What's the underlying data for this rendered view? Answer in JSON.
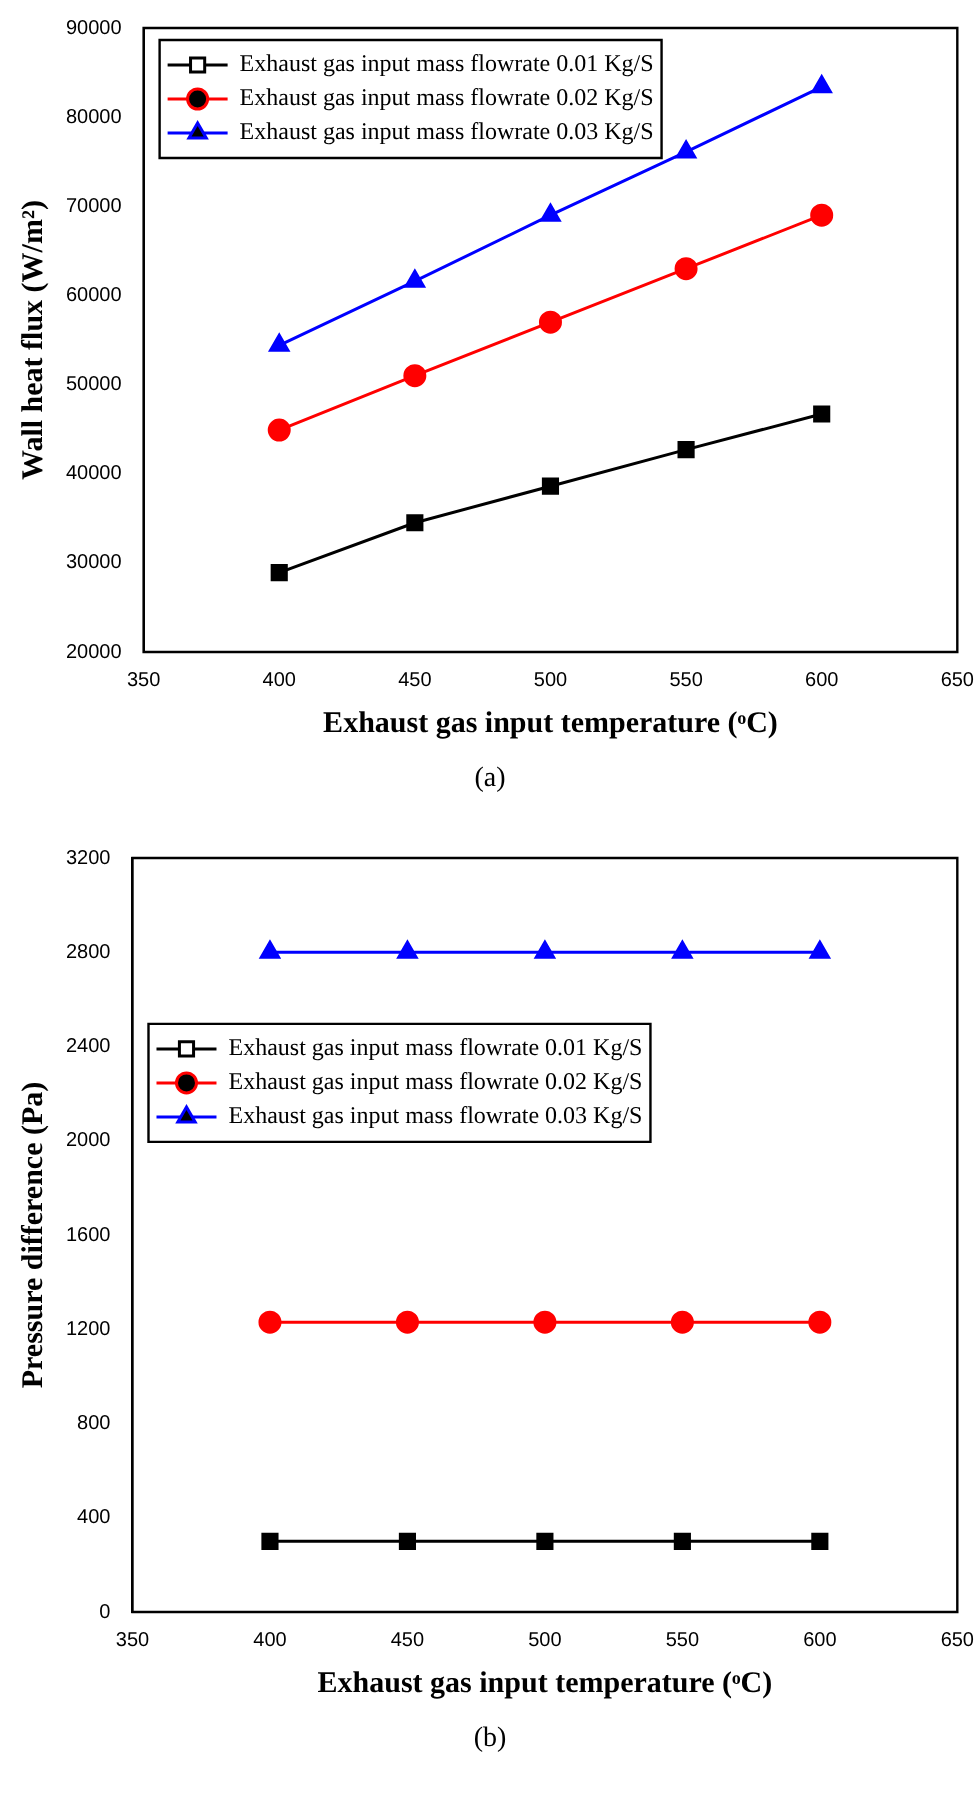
{
  "chart_data": [
    {
      "type": "line",
      "xlabel": "Exhaust gas input temperature (ᵒC)",
      "ylabel": "Wall heat flux (W/m²)",
      "annotations": [
        "(a)"
      ],
      "x": [
        400,
        450,
        500,
        550,
        600
      ],
      "xlim": [
        350,
        650
      ],
      "xticks": [
        350,
        400,
        450,
        500,
        550,
        600,
        650
      ],
      "ylim": [
        20000,
        90000
      ],
      "yticks": [
        20000,
        30000,
        40000,
        50000,
        60000,
        70000,
        80000,
        90000
      ],
      "legend": "top left",
      "grid": false,
      "series": [
        {
          "name": "Exhaust gas input mass flowrate 0.01 Kg/S",
          "color": "#000000",
          "marker": "square",
          "values": [
            28900,
            34500,
            38600,
            42700,
            46700
          ]
        },
        {
          "name": "Exhaust gas input mass flowrate 0.02 Kg/S",
          "color": "#ff0000",
          "marker": "circle",
          "values": [
            44900,
            51000,
            57000,
            63000,
            69000
          ]
        },
        {
          "name": "Exhaust gas input mass flowrate 0.03 Kg/S",
          "color": "#0000ff",
          "marker": "triangle",
          "values": [
            54400,
            61600,
            69000,
            76100,
            83400
          ]
        }
      ]
    },
    {
      "type": "line",
      "xlabel": "Exhaust gas input temperature (ᵒC)",
      "ylabel": "Pressure difference (Pa)",
      "annotations": [
        "(b)"
      ],
      "x": [
        400,
        450,
        500,
        550,
        600
      ],
      "xlim": [
        350,
        650
      ],
      "xticks": [
        350,
        400,
        450,
        500,
        550,
        600,
        650
      ],
      "ylim": [
        0,
        3200
      ],
      "yticks": [
        0,
        400,
        800,
        1200,
        1600,
        2000,
        2400,
        2800,
        3200
      ],
      "legend": "left",
      "grid": false,
      "series": [
        {
          "name": "Exhaust gas input mass flowrate 0.01 Kg/S",
          "color": "#000000",
          "marker": "square",
          "values": [
            300,
            300,
            300,
            300,
            300
          ]
        },
        {
          "name": "Exhaust gas input mass flowrate 0.02 Kg/S",
          "color": "#ff0000",
          "marker": "circle",
          "values": [
            1230,
            1230,
            1230,
            1230,
            1230
          ]
        },
        {
          "name": "Exhaust gas input mass flowrate 0.03 Kg/S",
          "color": "#0000ff",
          "marker": "triangle",
          "values": [
            2800,
            2800,
            2800,
            2800,
            2800
          ]
        }
      ]
    }
  ]
}
